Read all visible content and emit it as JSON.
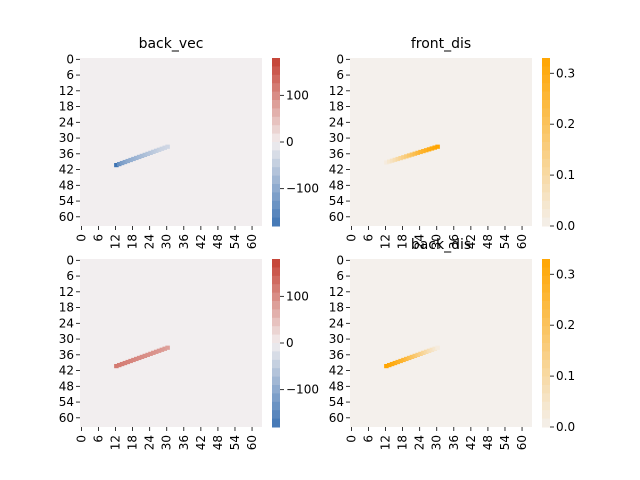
{
  "chart_data": [
    {
      "type": "heatmap",
      "title": "back_vec",
      "grid_size": 64,
      "ytick_labels": [
        "0",
        "6",
        "12",
        "18",
        "24",
        "30",
        "36",
        "42",
        "48",
        "54",
        "60"
      ],
      "xtick_labels": [
        "0",
        "6",
        "12",
        "18",
        "24",
        "30",
        "36",
        "42",
        "48",
        "54",
        "60"
      ],
      "colormap": "diverging-blue-white-red",
      "background_value": 0,
      "colorbar": {
        "ticks": [
          100,
          0,
          -100
        ],
        "tick_labels": [
          "100",
          "0",
          "−100"
        ],
        "range": [
          -180,
          180
        ]
      },
      "trace": {
        "start": {
          "x": 12,
          "y": 40
        },
        "end": {
          "x": 30,
          "y": 33
        },
        "values": [
          -180,
          -140,
          -120,
          -110,
          -100,
          -95,
          -90,
          -85,
          -80,
          -75,
          -70,
          -65,
          -60,
          -55,
          -50,
          -45,
          -40,
          -38,
          -35
        ]
      }
    },
    {
      "type": "heatmap",
      "title": "front_dis",
      "grid_size": 64,
      "ytick_labels": [
        "0",
        "6",
        "12",
        "18",
        "24",
        "30",
        "36",
        "42",
        "48",
        "54",
        "60"
      ],
      "xtick_labels": [
        "0",
        "6",
        "12",
        "18",
        "24",
        "30",
        "36",
        "42",
        "48",
        "54",
        "60"
      ],
      "colormap": "beige-to-orange",
      "background_value": 0,
      "colorbar": {
        "ticks": [
          0.3,
          0.2,
          0.1,
          0.0
        ],
        "tick_labels": [
          "0.3",
          "0.2",
          "0.1",
          "0.0"
        ],
        "range": [
          0,
          0.33
        ]
      },
      "trace": {
        "start": {
          "x": 12,
          "y": 39
        },
        "end": {
          "x": 30,
          "y": 33
        },
        "values": [
          0.02,
          0.04,
          0.06,
          0.08,
          0.1,
          0.12,
          0.14,
          0.16,
          0.18,
          0.2,
          0.22,
          0.24,
          0.26,
          0.27,
          0.28,
          0.3,
          0.31,
          0.32,
          0.33
        ]
      }
    },
    {
      "type": "heatmap",
      "title": "",
      "grid_size": 64,
      "ytick_labels": [
        "0",
        "6",
        "12",
        "18",
        "24",
        "30",
        "36",
        "42",
        "48",
        "54",
        "60"
      ],
      "xtick_labels": [
        "0",
        "6",
        "12",
        "18",
        "24",
        "30",
        "36",
        "42",
        "48",
        "54",
        "60"
      ],
      "colormap": "diverging-blue-white-red",
      "background_value": 0,
      "colorbar": {
        "ticks": [
          100,
          0,
          -100
        ],
        "tick_labels": [
          "100",
          "0",
          "−100"
        ],
        "range": [
          -180,
          180
        ]
      },
      "trace": {
        "start": {
          "x": 12,
          "y": 40
        },
        "end": {
          "x": 30,
          "y": 33
        },
        "values": [
          120,
          118,
          115,
          112,
          110,
          108,
          106,
          104,
          102,
          100,
          98,
          96,
          95,
          94,
          92,
          90,
          88,
          85,
          80
        ]
      }
    },
    {
      "type": "heatmap",
      "title": "back_dis",
      "grid_size": 64,
      "ytick_labels": [
        "0",
        "6",
        "12",
        "18",
        "24",
        "30",
        "36",
        "42",
        "48",
        "54",
        "60"
      ],
      "xtick_labels": [
        "0",
        "6",
        "12",
        "18",
        "24",
        "30",
        "36",
        "42",
        "48",
        "54",
        "60"
      ],
      "colormap": "beige-to-orange",
      "background_value": 0,
      "colorbar": {
        "ticks": [
          0.3,
          0.2,
          0.1,
          0.0
        ],
        "tick_labels": [
          "0.3",
          "0.2",
          "0.1",
          "0.0"
        ],
        "range": [
          0,
          0.33
        ]
      },
      "trace": {
        "start": {
          "x": 12,
          "y": 40
        },
        "end": {
          "x": 30,
          "y": 33
        },
        "values": [
          0.33,
          0.32,
          0.31,
          0.3,
          0.28,
          0.27,
          0.26,
          0.24,
          0.22,
          0.2,
          0.18,
          0.16,
          0.14,
          0.12,
          0.1,
          0.08,
          0.06,
          0.04,
          0.02
        ]
      }
    }
  ]
}
